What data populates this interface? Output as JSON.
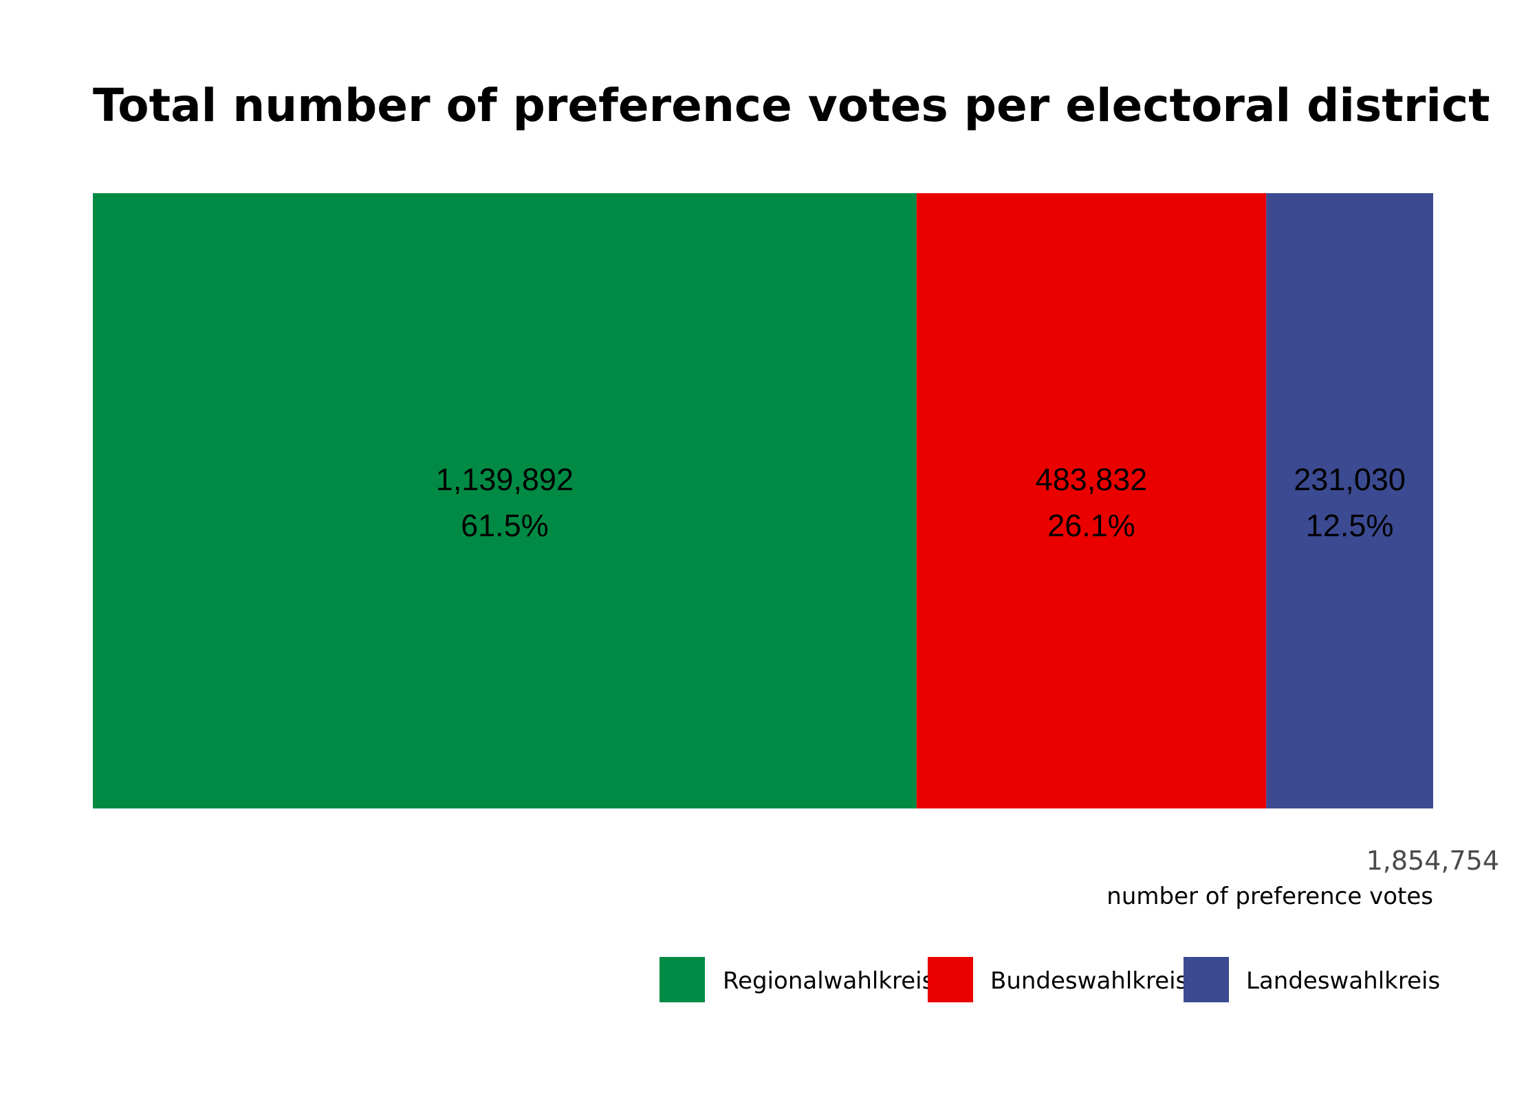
{
  "chart_data": {
    "type": "bar",
    "orientation": "horizontal-stacked",
    "title": "Total number of preference votes per electoral district",
    "xlabel": "number of preference votes",
    "total": 1854754,
    "total_label": "1,854,754",
    "series": [
      {
        "name": "Regionalwahlkreis",
        "value": 1139892,
        "value_label": "1,139,892",
        "percent_label": "61.5%",
        "color": "#008A44"
      },
      {
        "name": "Bundeswahlkreis",
        "value": 483832,
        "value_label": "483,832",
        "percent_label": "26.1%",
        "color": "#EB0000"
      },
      {
        "name": "Landeswahlkreis",
        "value": 231030,
        "value_label": "231,030",
        "percent_label": "12.5%",
        "color": "#3C4A91"
      }
    ],
    "legend_position": "bottom-right",
    "grid": false
  }
}
